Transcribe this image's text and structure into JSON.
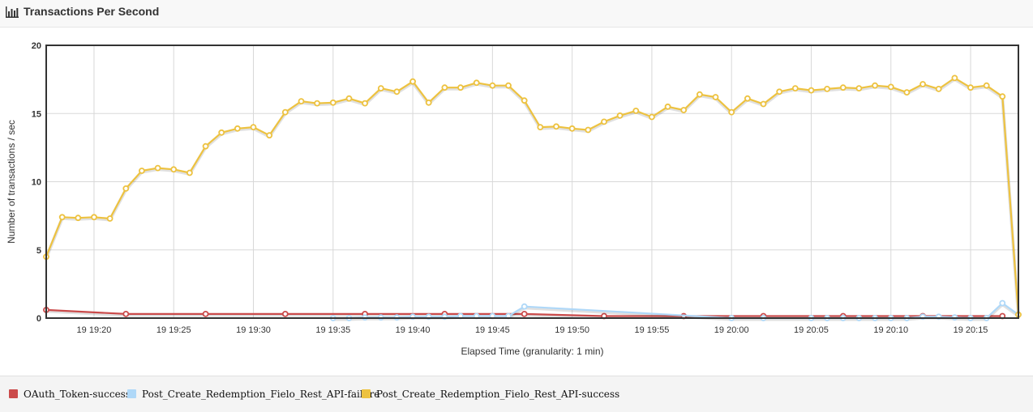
{
  "header": {
    "title": "Transactions Per Second",
    "icon": "bar-chart-icon"
  },
  "chart_data": {
    "type": "line",
    "ylabel": "Number of transactions / sec",
    "xlabel": "Elapsed Time (granularity: 1 min)",
    "ylim": [
      0,
      20
    ],
    "yticks": [
      "0",
      "5",
      "10",
      "15",
      "20"
    ],
    "xlim": [
      "19 19:17",
      "19 20:18"
    ],
    "xticks": [
      "19 19:20",
      "19 19:25",
      "19 19:30",
      "19 19:35",
      "19 19:40",
      "19 19:45",
      "19 19:50",
      "19 19:55",
      "19 20:00",
      "19 20:05",
      "19 20:10",
      "19 20:15"
    ],
    "grid": true,
    "legend_position": "bottom",
    "series": [
      {
        "name": "OAuth_Token-success",
        "color": "#cb4b4b",
        "points": [
          [
            "19 19:17",
            0.6
          ],
          [
            "19 19:22",
            0.3
          ],
          [
            "19 19:27",
            0.3
          ],
          [
            "19 19:32",
            0.3
          ],
          [
            "19 19:37",
            0.3
          ],
          [
            "19 19:42",
            0.3
          ],
          [
            "19 19:47",
            0.3
          ],
          [
            "19 19:52",
            0.15
          ],
          [
            "19 19:57",
            0.15
          ],
          [
            "19 20:02",
            0.15
          ],
          [
            "19 20:07",
            0.15
          ],
          [
            "19 20:12",
            0.15
          ],
          [
            "19 20:17",
            0.15
          ]
        ]
      },
      {
        "name": "Post_Create_Redemption_Fielo_Rest_API-failure",
        "color": "#afd8f8",
        "points": [
          [
            "19 19:35",
            0.0
          ],
          [
            "19 19:36",
            0.0
          ],
          [
            "19 19:37",
            0.05
          ],
          [
            "19 19:38",
            0.05
          ],
          [
            "19 19:39",
            0.05
          ],
          [
            "19 19:40",
            0.1
          ],
          [
            "19 19:41",
            0.1
          ],
          [
            "19 19:42",
            0.1
          ],
          [
            "19 19:43",
            0.15
          ],
          [
            "19 19:44",
            0.15
          ],
          [
            "19 19:45",
            0.15
          ],
          [
            "19 19:46",
            0.15
          ],
          [
            "19 19:47",
            0.85
          ],
          [
            "19 20:00",
            0.0
          ],
          [
            "19 20:02",
            0.0
          ],
          [
            "19 20:05",
            0.0
          ],
          [
            "19 20:06",
            0.0
          ],
          [
            "19 20:07",
            0.0
          ],
          [
            "19 20:08",
            0.0
          ],
          [
            "19 20:09",
            0.0
          ],
          [
            "19 20:10",
            0.0
          ],
          [
            "19 20:11",
            0.0
          ],
          [
            "19 20:12",
            0.1
          ],
          [
            "19 20:13",
            0.1
          ],
          [
            "19 20:14",
            0.05
          ],
          [
            "19 20:15",
            0.0
          ],
          [
            "19 20:16",
            0.0
          ],
          [
            "19 20:17",
            1.1
          ],
          [
            "19 20:18",
            0.25
          ]
        ]
      },
      {
        "name": "Post_Create_Redemption_Fielo_Rest_API-success",
        "color": "#edc240",
        "points": [
          [
            "19 19:17",
            4.5
          ],
          [
            "19 19:18",
            7.4
          ],
          [
            "19 19:19",
            7.35
          ],
          [
            "19 19:20",
            7.4
          ],
          [
            "19 19:21",
            7.3
          ],
          [
            "19 19:22",
            9.5
          ],
          [
            "19 19:23",
            10.8
          ],
          [
            "19 19:24",
            11.0
          ],
          [
            "19 19:25",
            10.9
          ],
          [
            "19 19:26",
            10.65
          ],
          [
            "19 19:27",
            12.6
          ],
          [
            "19 19:28",
            13.6
          ],
          [
            "19 19:29",
            13.9
          ],
          [
            "19 19:30",
            14.0
          ],
          [
            "19 19:31",
            13.4
          ],
          [
            "19 19:32",
            15.1
          ],
          [
            "19 19:33",
            15.9
          ],
          [
            "19 19:34",
            15.75
          ],
          [
            "19 19:35",
            15.8
          ],
          [
            "19 19:36",
            16.1
          ],
          [
            "19 19:37",
            15.75
          ],
          [
            "19 19:38",
            16.85
          ],
          [
            "19 19:39",
            16.6
          ],
          [
            "19 19:40",
            17.35
          ],
          [
            "19 19:41",
            15.8
          ],
          [
            "19 19:42",
            16.9
          ],
          [
            "19 19:43",
            16.9
          ],
          [
            "19 19:44",
            17.25
          ],
          [
            "19 19:45",
            17.05
          ],
          [
            "19 19:46",
            17.05
          ],
          [
            "19 19:47",
            15.95
          ],
          [
            "19 19:48",
            14.0
          ],
          [
            "19 19:49",
            14.05
          ],
          [
            "19 19:50",
            13.9
          ],
          [
            "19 19:51",
            13.8
          ],
          [
            "19 19:52",
            14.4
          ],
          [
            "19 19:53",
            14.85
          ],
          [
            "19 19:54",
            15.2
          ],
          [
            "19 19:55",
            14.75
          ],
          [
            "19 19:56",
            15.5
          ],
          [
            "19 19:57",
            15.25
          ],
          [
            "19 19:58",
            16.4
          ],
          [
            "19 19:59",
            16.2
          ],
          [
            "19 20:00",
            15.1
          ],
          [
            "19 20:01",
            16.1
          ],
          [
            "19 20:02",
            15.7
          ],
          [
            "19 20:03",
            16.6
          ],
          [
            "19 20:04",
            16.85
          ],
          [
            "19 20:05",
            16.7
          ],
          [
            "19 20:06",
            16.8
          ],
          [
            "19 20:07",
            16.9
          ],
          [
            "19 20:08",
            16.85
          ],
          [
            "19 20:09",
            17.05
          ],
          [
            "19 20:10",
            16.95
          ],
          [
            "19 20:11",
            16.55
          ],
          [
            "19 20:12",
            17.15
          ],
          [
            "19 20:13",
            16.8
          ],
          [
            "19 20:14",
            17.6
          ],
          [
            "19 20:15",
            16.9
          ],
          [
            "19 20:16",
            17.05
          ],
          [
            "19 20:17",
            16.25
          ],
          [
            "19 20:18",
            0.25
          ]
        ]
      }
    ]
  }
}
